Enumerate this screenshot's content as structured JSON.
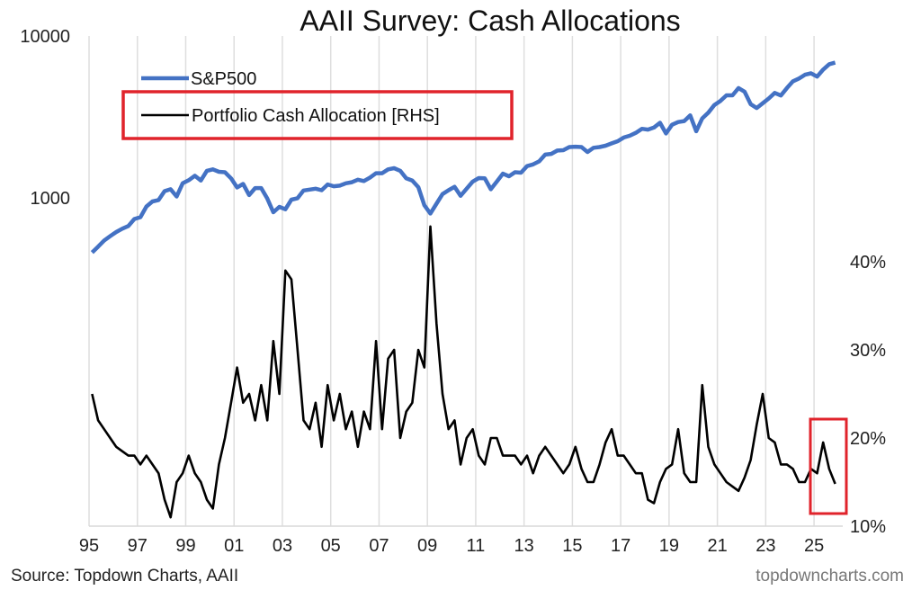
{
  "chart_data": {
    "type": "line",
    "title": "AAII Survey: Cash Allocations",
    "source": "Source: Topdown Charts, AAII",
    "watermark": "topdowncharts.com",
    "x_ticks": [
      "95",
      "97",
      "99",
      "01",
      "03",
      "05",
      "07",
      "09",
      "11",
      "13",
      "15",
      "17",
      "19",
      "21",
      "23",
      "25"
    ],
    "x_range": [
      1995,
      2026.2
    ],
    "left_axis": {
      "scale": "log",
      "ticks": [
        "10000",
        "1000"
      ]
    },
    "right_axis": {
      "scale": "linear",
      "ticks": [
        "40%",
        "30%",
        "20%",
        "10%"
      ],
      "range_pct": [
        10,
        48
      ]
    },
    "grid": "vertical",
    "legend": {
      "placement": "top-left",
      "items": [
        "S&P500",
        "Portfolio Cash Allocation [RHS]"
      ]
    },
    "colors": {
      "sp500": "#4472c4",
      "cash": "#000000",
      "highlight": "#e0232b",
      "grid": "#d9d9d9"
    },
    "annotations": [
      "red box around legend entry 'Portfolio Cash Allocation [RHS]'",
      "red box around 2025 cash allocation"
    ],
    "start_year": 1995,
    "frequency": "quarterly",
    "series": [
      {
        "name": "S&P500",
        "axis": "left",
        "values": [
          460,
          500,
          545,
          580,
          615,
          645,
          670,
          740,
          760,
          885,
          950,
          970,
          1100,
          1130,
          1020,
          1230,
          1285,
          1370,
          1280,
          1470,
          1500,
          1450,
          1440,
          1320,
          1160,
          1220,
          1040,
          1150,
          1150,
          990,
          815,
          880,
          850,
          975,
          995,
          1110,
          1125,
          1140,
          1115,
          1210,
          1180,
          1190,
          1230,
          1250,
          1295,
          1270,
          1335,
          1420,
          1420,
          1500,
          1525,
          1470,
          1320,
          1280,
          1165,
          900,
          800,
          920,
          1055,
          1115,
          1170,
          1030,
          1140,
          1260,
          1325,
          1320,
          1130,
          1260,
          1410,
          1360,
          1440,
          1430,
          1570,
          1610,
          1680,
          1850,
          1870,
          1960,
          1970,
          2060,
          2070,
          2060,
          1920,
          2040,
          2060,
          2100,
          2170,
          2240,
          2360,
          2420,
          2520,
          2670,
          2640,
          2720,
          2910,
          2500,
          2830,
          2940,
          2980,
          3230,
          2580,
          3100,
          3360,
          3750,
          3970,
          4300,
          4300,
          4770,
          4530,
          3790,
          3590,
          3840,
          4110,
          4450,
          4290,
          4770,
          5250,
          5460,
          5760,
          5880,
          5610,
          6200,
          6690,
          6850
        ]
      },
      {
        "name": "Portfolio Cash Allocation [RHS]",
        "axis": "right",
        "unit": "%",
        "values": [
          25,
          22,
          21,
          20,
          19,
          18.5,
          18,
          18,
          17,
          18,
          17,
          16,
          13,
          11,
          15,
          16,
          18,
          16,
          15,
          13,
          12,
          17,
          20,
          24,
          28,
          24,
          25,
          22,
          26,
          22,
          31,
          25,
          39,
          38,
          30,
          22,
          21,
          24,
          19,
          26,
          22,
          25,
          21,
          23,
          19,
          23,
          21,
          31,
          21,
          29,
          30,
          20,
          23,
          24,
          30,
          28,
          44,
          33,
          25,
          21,
          22,
          17,
          20,
          21,
          18,
          17,
          20,
          20,
          18,
          18,
          18,
          17,
          18,
          16,
          18,
          19,
          18,
          17,
          16,
          17,
          19,
          16.5,
          15,
          15,
          17,
          19.5,
          21,
          18,
          18,
          17,
          16,
          16,
          13,
          12.6,
          15,
          16.5,
          17,
          21,
          16,
          15,
          15,
          26,
          19,
          17,
          16,
          15,
          14.5,
          14,
          15.5,
          17.5,
          21.5,
          25,
          20,
          19.5,
          17,
          17,
          16.5,
          15,
          15,
          16.5,
          16,
          19.5,
          16.5,
          14.8
        ]
      }
    ]
  }
}
